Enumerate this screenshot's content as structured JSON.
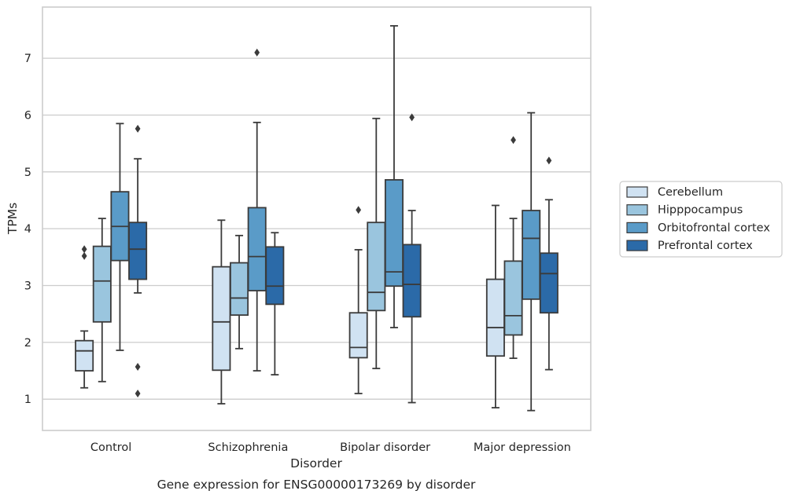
{
  "chart_data": {
    "type": "box",
    "caption": "Gene expression for ENSG00000173269 by disorder",
    "xlabel": "Disorder",
    "ylabel": "TPMs",
    "ylim": [
      0.45,
      7.9
    ],
    "yticks": [
      1,
      2,
      3,
      4,
      5,
      6,
      7
    ],
    "grid": "horizontal",
    "legend_position": "right",
    "categories": [
      "Control",
      "Schizophrenia",
      "Bipolar disorder",
      "Major depression"
    ],
    "series": [
      {
        "name": "Cerebellum",
        "color": "#d0e2f2",
        "boxes": [
          {
            "whislo": 1.2,
            "q1": 1.5,
            "med": 1.85,
            "q3": 2.03,
            "whishi": 2.2,
            "fliers": [
              3.52,
              3.64
            ]
          },
          {
            "whislo": 0.92,
            "q1": 1.51,
            "med": 2.36,
            "q3": 3.33,
            "whishi": 4.15,
            "fliers": []
          },
          {
            "whislo": 1.1,
            "q1": 1.73,
            "med": 1.91,
            "q3": 2.52,
            "whishi": 3.63,
            "fliers": [
              4.33
            ]
          },
          {
            "whislo": 0.85,
            "q1": 1.76,
            "med": 2.26,
            "q3": 3.11,
            "whishi": 4.41,
            "fliers": []
          }
        ]
      },
      {
        "name": "Hipppocampus",
        "color": "#9ac5de",
        "boxes": [
          {
            "whislo": 1.31,
            "q1": 2.36,
            "med": 3.08,
            "q3": 3.69,
            "whishi": 4.18,
            "fliers": []
          },
          {
            "whislo": 1.89,
            "q1": 2.48,
            "med": 2.78,
            "q3": 3.4,
            "whishi": 3.88,
            "fliers": []
          },
          {
            "whislo": 1.54,
            "q1": 2.56,
            "med": 2.88,
            "q3": 4.11,
            "whishi": 5.94,
            "fliers": []
          },
          {
            "whislo": 1.72,
            "q1": 2.13,
            "med": 2.47,
            "q3": 3.43,
            "whishi": 4.18,
            "fliers": [
              5.56
            ]
          }
        ]
      },
      {
        "name": "Orbitofrontal cortex",
        "color": "#5a9bc8",
        "boxes": [
          {
            "whislo": 1.86,
            "q1": 3.44,
            "med": 4.04,
            "q3": 4.65,
            "whishi": 5.85,
            "fliers": []
          },
          {
            "whislo": 1.5,
            "q1": 2.91,
            "med": 3.51,
            "q3": 4.37,
            "whishi": 5.87,
            "fliers": [
              7.1
            ]
          },
          {
            "whislo": 2.26,
            "q1": 2.99,
            "med": 3.24,
            "q3": 4.86,
            "whishi": 7.57,
            "fliers": []
          },
          {
            "whislo": 0.8,
            "q1": 2.76,
            "med": 3.83,
            "q3": 4.32,
            "whishi": 6.04,
            "fliers": []
          }
        ]
      },
      {
        "name": "Prefrontal cortex",
        "color": "#2b6aa8",
        "boxes": [
          {
            "whislo": 2.87,
            "q1": 3.11,
            "med": 3.64,
            "q3": 4.11,
            "whishi": 5.23,
            "fliers": [
              1.1,
              1.57,
              5.76
            ]
          },
          {
            "whislo": 1.43,
            "q1": 2.67,
            "med": 2.99,
            "q3": 3.68,
            "whishi": 3.93,
            "fliers": []
          },
          {
            "whislo": 0.94,
            "q1": 2.45,
            "med": 3.02,
            "q3": 3.72,
            "whishi": 4.32,
            "fliers": [
              5.96
            ]
          },
          {
            "whislo": 1.52,
            "q1": 2.52,
            "med": 3.21,
            "q3": 3.57,
            "whishi": 4.51,
            "fliers": [
              5.2
            ]
          }
        ]
      }
    ]
  }
}
